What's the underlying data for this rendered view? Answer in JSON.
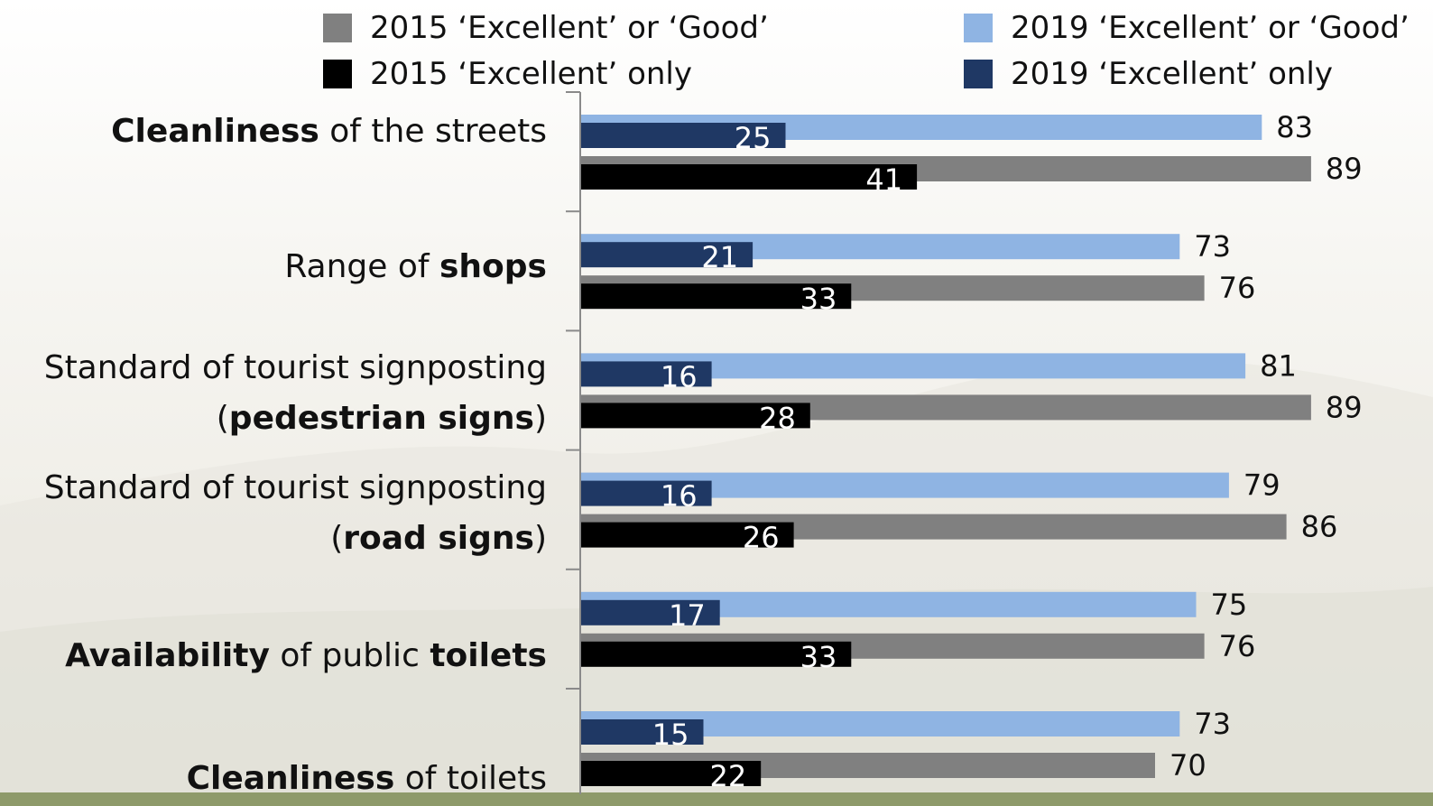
{
  "chart_data": {
    "type": "bar",
    "orientation": "horizontal",
    "categories": [
      [
        {
          "t": "Cleanliness",
          "b": true
        },
        {
          "t": " of the streets",
          "b": false
        }
      ],
      [
        {
          "t": "Range of ",
          "b": false
        },
        {
          "t": "shops",
          "b": true
        }
      ],
      [
        {
          "t": "Standard of tourist signposting",
          "b": false
        },
        {
          "t": "\n(",
          "b": false
        },
        {
          "t": "pedestrian signs",
          "b": true
        },
        {
          "t": ")",
          "b": false
        }
      ],
      [
        {
          "t": "Standard of tourist signposting",
          "b": false
        },
        {
          "t": "\n(",
          "b": false
        },
        {
          "t": "road signs",
          "b": true
        },
        {
          "t": ")",
          "b": false
        }
      ],
      [
        {
          "t": "Availability",
          "b": true
        },
        {
          "t": " of public ",
          "b": false
        },
        {
          "t": "toilets",
          "b": true
        }
      ],
      [
        {
          "t": "Cleanliness",
          "b": true
        },
        {
          "t": " of toilets",
          "b": false
        }
      ]
    ],
    "series": [
      {
        "name": "2015 ‘Excellent’ or ‘Good’",
        "values": [
          89,
          76,
          89,
          86,
          76,
          70
        ],
        "color": "#808080"
      },
      {
        "name": "2019 ‘Excellent’ or ‘Good’",
        "values": [
          83,
          73,
          81,
          79,
          75,
          73
        ],
        "color": "#8fb4e3"
      },
      {
        "name": "2015 ‘Excellent’ only",
        "values": [
          41,
          33,
          28,
          26,
          33,
          22
        ],
        "color": "#000000"
      },
      {
        "name": "2019 ‘Excellent’ only",
        "values": [
          25,
          21,
          16,
          16,
          17,
          15
        ],
        "color": "#1f3864"
      }
    ],
    "xlim": [
      0,
      100
    ],
    "grid": false,
    "legend_position": "top"
  }
}
